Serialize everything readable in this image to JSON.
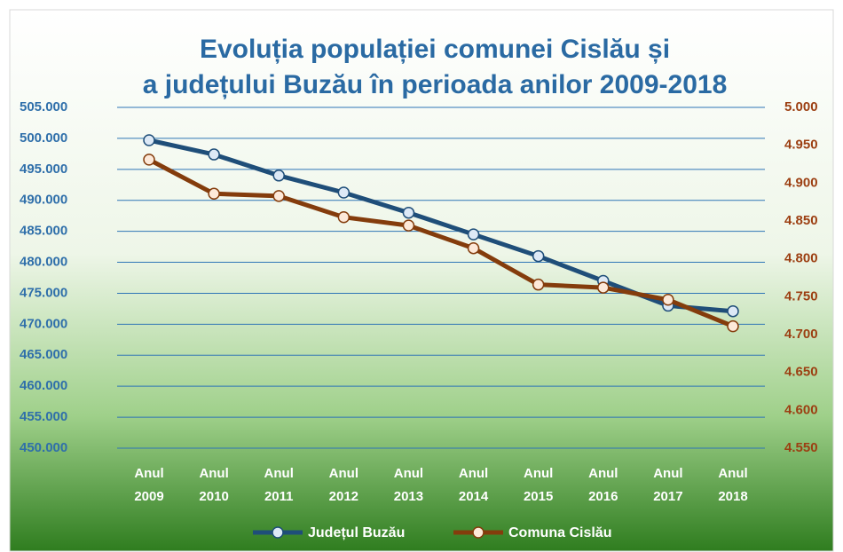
{
  "chart_data": {
    "type": "line",
    "title": "Evoluția populației comunei Cislău și a județului Buzău în perioada anilor 2009-2018",
    "categories": [
      "Anul 2009",
      "Anul 2010",
      "Anul 2011",
      "Anul 2012",
      "Anul 2013",
      "Anul 2014",
      "Anul 2015",
      "Anul 2016",
      "Anul 2017",
      "Anul 2018"
    ],
    "series": [
      {
        "name": "Județul Buzău",
        "color": "#1f4e79",
        "values": [
          499700,
          497400,
          494000,
          491250,
          488000,
          484500,
          481000,
          477000,
          473000,
          472100
        ]
      },
      {
        "name": "Comuna Cislău",
        "color": "#843c0c",
        "axis": "y2",
        "values": [
          4931,
          4886,
          4883,
          4855,
          4844,
          4814,
          4766,
          4762,
          4746,
          4711
        ]
      }
    ],
    "ylim": [
      450000,
      505000
    ],
    "yticks": [
      {
        "value": 450000,
        "label": "450.000"
      },
      {
        "value": 455000,
        "label": "455.000"
      },
      {
        "value": 460000,
        "label": "460.000"
      },
      {
        "value": 465000,
        "label": "465.000"
      },
      {
        "value": 470000,
        "label": "470.000"
      },
      {
        "value": 475000,
        "label": "475.000"
      },
      {
        "value": 480000,
        "label": "480.000"
      },
      {
        "value": 485000,
        "label": "485.000"
      },
      {
        "value": 490000,
        "label": "490.000"
      },
      {
        "value": 495000,
        "label": "495.000"
      },
      {
        "value": 500000,
        "label": "500.000"
      },
      {
        "value": 505000,
        "label": "505.000"
      }
    ],
    "y2lim": [
      4550,
      5000
    ],
    "y2ticks": [
      {
        "value": 4550,
        "label": "4.550"
      },
      {
        "value": 4600,
        "label": "4.600"
      },
      {
        "value": 4650,
        "label": "4.650"
      },
      {
        "value": 4700,
        "label": "4.700"
      },
      {
        "value": 4750,
        "label": "4.750"
      },
      {
        "value": 4800,
        "label": "4.800"
      },
      {
        "value": 4850,
        "label": "4.850"
      },
      {
        "value": 4900,
        "label": "4.900"
      },
      {
        "value": 4950,
        "label": "4.950"
      },
      {
        "value": 5000,
        "label": "5.000"
      }
    ],
    "grid": true,
    "legend": "bottom"
  }
}
